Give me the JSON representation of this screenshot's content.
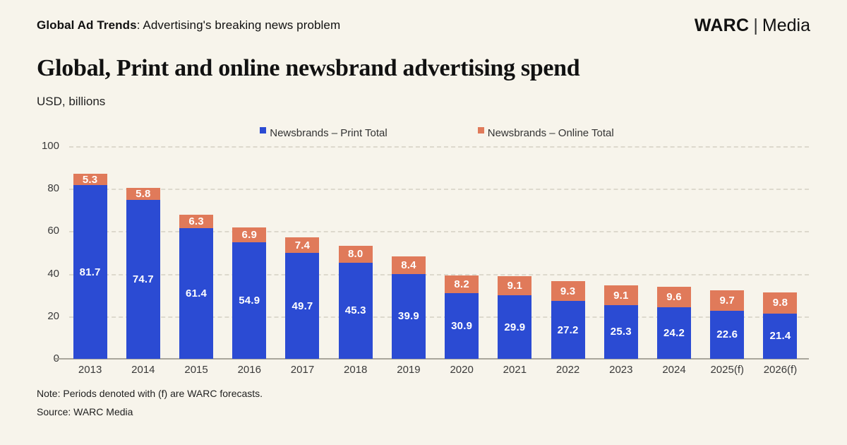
{
  "header": {
    "series_title_bold": "Global Ad Trends",
    "series_title_rest": ": Advertising's breaking news problem",
    "brand_name": "WARC",
    "brand_divider": "|",
    "brand_suffix": "Media"
  },
  "chart_data": {
    "type": "bar",
    "stacked": true,
    "title": "Global, Print and online newsbrand advertising spend",
    "subtitle": "USD, billions",
    "categories": [
      "2013",
      "2014",
      "2015",
      "2016",
      "2017",
      "2018",
      "2019",
      "2020",
      "2021",
      "2022",
      "2023",
      "2024",
      "2025(f)",
      "2026(f)"
    ],
    "series": [
      {
        "name": "Newsbrands – Print Total",
        "color": "#2b4bd3",
        "values": [
          81.7,
          74.7,
          61.4,
          54.9,
          49.7,
          45.3,
          39.9,
          30.9,
          29.9,
          27.2,
          25.3,
          24.2,
          22.6,
          21.4
        ]
      },
      {
        "name": "Newsbrands – Online Total",
        "color": "#e07a5a",
        "values": [
          5.3,
          5.8,
          6.3,
          6.9,
          7.4,
          8.0,
          8.4,
          8.2,
          9.1,
          9.3,
          9.1,
          9.6,
          9.7,
          9.8
        ]
      }
    ],
    "ylim": [
      0,
      100
    ],
    "yticks": [
      0,
      20,
      40,
      60,
      80,
      100
    ],
    "grid": "horizontal-dashed",
    "legend_position": "top",
    "value_labels": "inside-white-bold",
    "colors": {
      "background": "#f7f4eb",
      "axis_line": "#a9a69c",
      "gridline": "#ddd9cd"
    }
  },
  "footer": {
    "note": "Note: Periods denoted with (f) are WARC forecasts.",
    "source": "Source: WARC Media"
  }
}
